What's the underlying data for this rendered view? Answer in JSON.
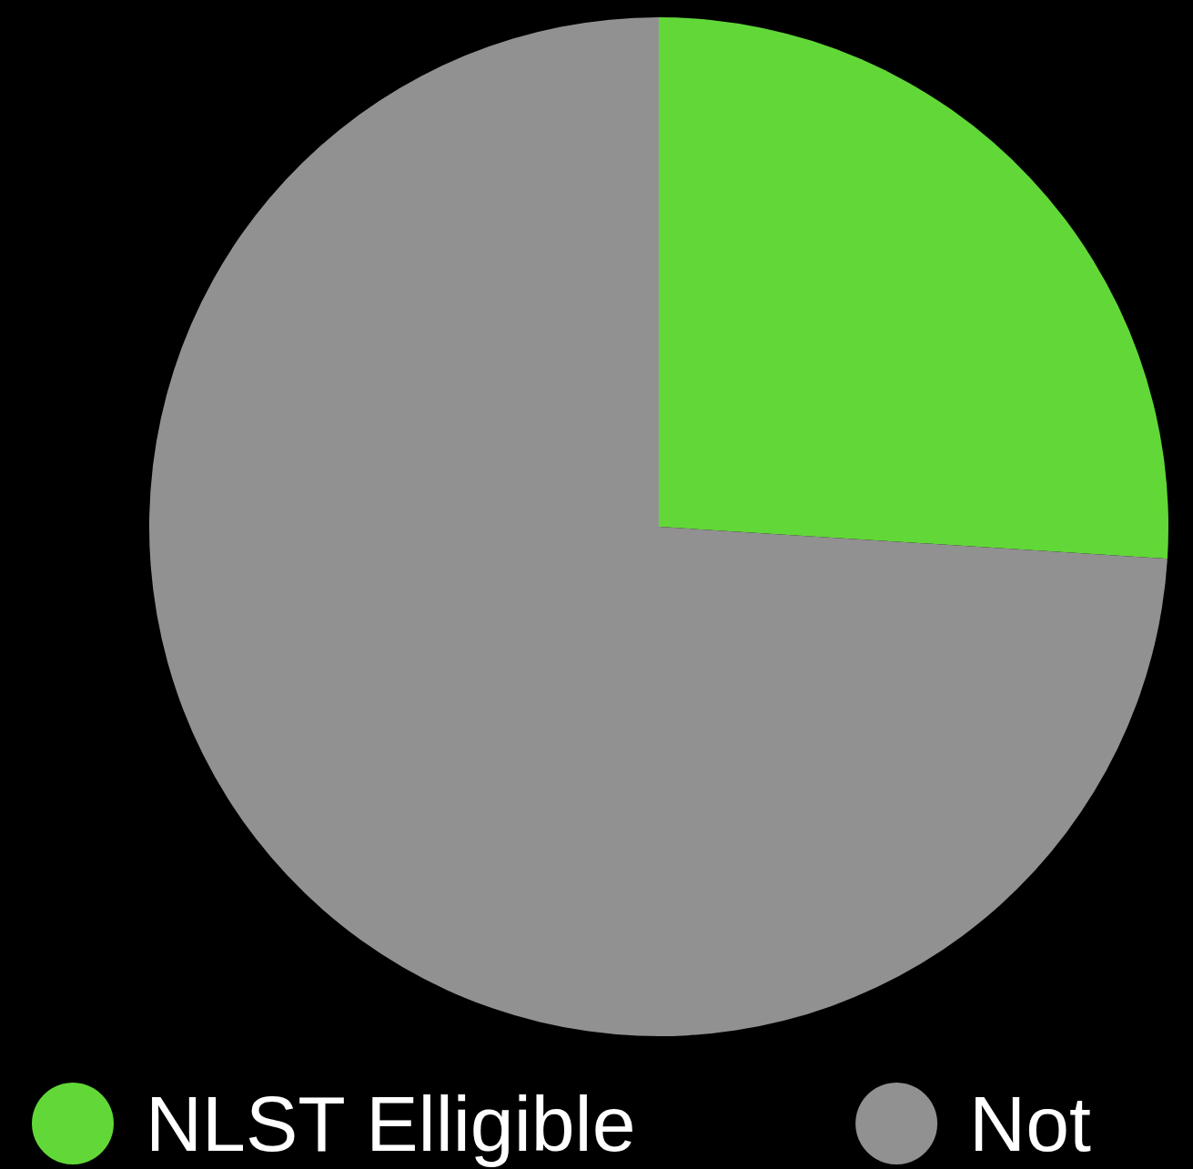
{
  "chart_data": {
    "type": "pie",
    "categories": [
      "NLST Elligible",
      "Not"
    ],
    "values": [
      26,
      74
    ],
    "colors": [
      "#62d838",
      "#919191"
    ],
    "legend": "bottom"
  }
}
